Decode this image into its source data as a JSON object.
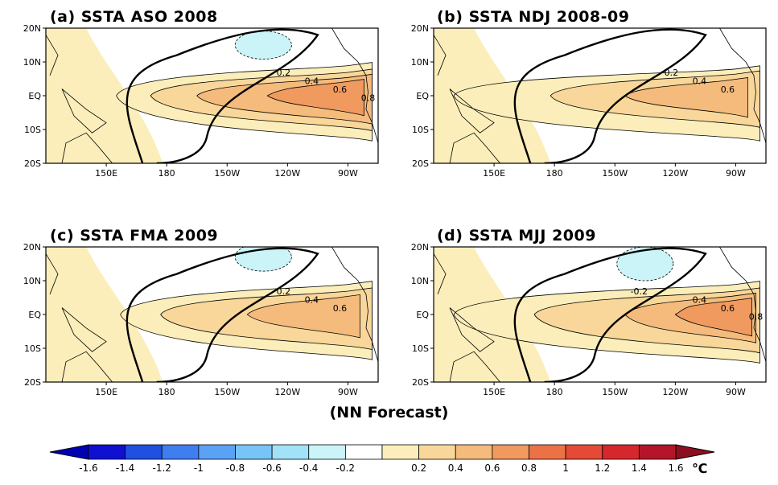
{
  "figure": {
    "footer_label": "(NN Forecast)",
    "unit": "℃"
  },
  "chart_data": [
    {
      "type": "heatmap",
      "panel": "(a)",
      "title": "(a) SSTA ASO 2008",
      "y_ticks": [
        "20N",
        "10N",
        "EQ",
        "10S",
        "20S"
      ],
      "x_ticks": [
        "150E",
        "180",
        "150W",
        "120W",
        "90W"
      ],
      "contour_labels": [
        "0.2",
        "0.4",
        "0.6",
        "0.8"
      ],
      "warm_core": {
        "max_value": 0.8,
        "center_lon": "100W",
        "center_lat": "EQ"
      },
      "cold_patch": {
        "value": -0.2,
        "center_lon": "130W",
        "center_lat": "15N"
      }
    },
    {
      "type": "heatmap",
      "panel": "(b)",
      "title": "(b) SSTA NDJ 2008-09",
      "y_ticks": [
        "20N",
        "10N",
        "EQ",
        "10S",
        "20S"
      ],
      "x_ticks": [
        "150E",
        "180",
        "150W",
        "120W",
        "90W"
      ],
      "contour_labels": [
        "0.2",
        "0.4",
        "0.6"
      ],
      "warm_core": {
        "max_value": 0.6,
        "center_lon": "105W",
        "center_lat": "EQ"
      }
    },
    {
      "type": "heatmap",
      "panel": "(c)",
      "title": "(c) SSTA FMA 2009",
      "y_ticks": [
        "20N",
        "10N",
        "EQ",
        "10S",
        "20S"
      ],
      "x_ticks": [
        "150E",
        "180",
        "150W",
        "120W",
        "90W"
      ],
      "contour_labels": [
        "0.2",
        "0.4",
        "0.6"
      ],
      "warm_core": {
        "max_value": 0.6,
        "center_lon": "110W",
        "center_lat": "EQ"
      },
      "cold_patch": {
        "value": -0.2,
        "center_lon": "130W",
        "center_lat": "17N"
      }
    },
    {
      "type": "heatmap",
      "panel": "(d)",
      "title": "(d) SSTA MJJ 2009",
      "y_ticks": [
        "20N",
        "10N",
        "EQ",
        "10S",
        "20S"
      ],
      "x_ticks": [
        "150E",
        "180",
        "150W",
        "120W",
        "90W"
      ],
      "contour_labels": [
        "-0.2",
        "0.4",
        "0.6",
        "0.8"
      ],
      "warm_core": {
        "max_value": 0.8,
        "center_lon": "100W",
        "center_lat": "EQ"
      },
      "cold_patch": {
        "value": -0.2,
        "center_lon": "135W",
        "center_lat": "15N"
      }
    }
  ],
  "colorbar": {
    "ticks": [
      "-1.6",
      "-1.4",
      "-1.2",
      "-1",
      "-0.8",
      "-0.6",
      "-0.4",
      "-0.2",
      "0.2",
      "0.4",
      "0.6",
      "0.8",
      "1",
      "1.2",
      "1.4",
      "1.6"
    ],
    "colors": [
      "#1010d0",
      "#2050e0",
      "#3f7ef0",
      "#5aa2f5",
      "#78c3f8",
      "#a2e2f8",
      "#caf4f8",
      "#ffffff",
      "#fbeeba",
      "#f9d79a",
      "#f5bb7c",
      "#f09a60",
      "#eb7247",
      "#e44a36",
      "#d6272d",
      "#b41528"
    ],
    "left_triangle": "#0000b4",
    "right_triangle": "#8c0f21"
  },
  "colors": {
    "level_0_2": "#fbeeba",
    "level_0_4": "#f9d79a",
    "level_0_6": "#f5bb7c",
    "level_0_8": "#f09a60",
    "level_neg_0_2": "#caf4f8"
  }
}
